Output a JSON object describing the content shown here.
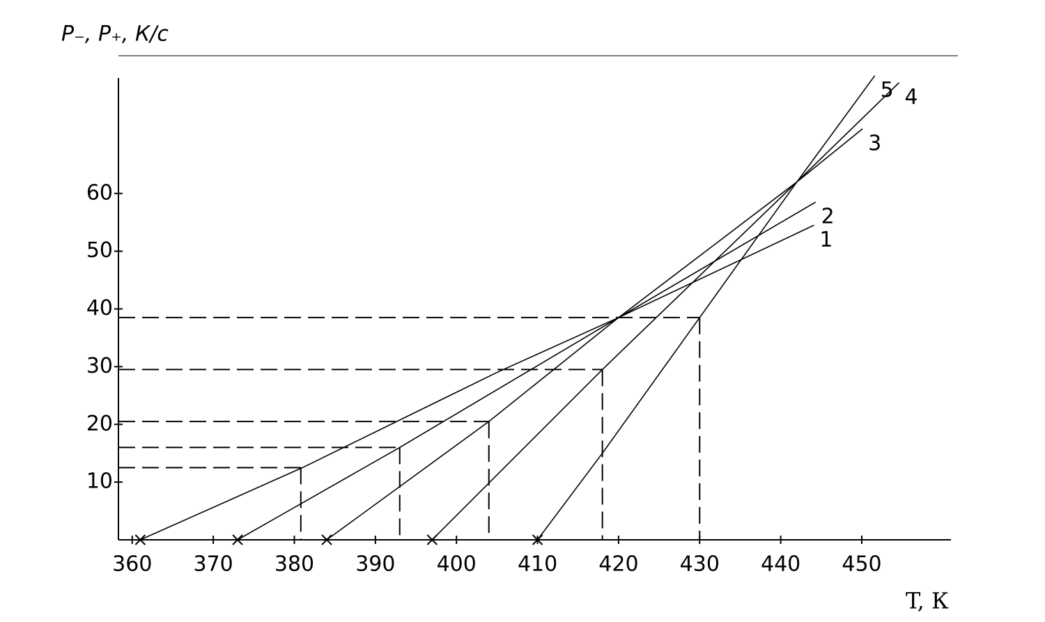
{
  "chart_data": {
    "type": "line",
    "y_label": "P₋, P₊, К/с",
    "x_label": "T, К",
    "xlim": [
      358.3,
      461
    ],
    "ylim": [
      0,
      80
    ],
    "xticks": [
      360,
      370,
      380,
      390,
      400,
      410,
      420,
      430,
      440,
      450
    ],
    "yticks": [
      10,
      20,
      30,
      40,
      50,
      60
    ],
    "series": [
      {
        "name": "1",
        "color": "#000000",
        "x": [
          361,
          381,
          405,
          420,
          444.1
        ],
        "values": [
          0,
          12.5,
          29,
          38.5,
          54.5
        ]
      },
      {
        "name": "2",
        "color": "#000000",
        "x": [
          373,
          393,
          420,
          444.3
        ],
        "values": [
          0,
          16,
          38.5,
          58.5
        ]
      },
      {
        "name": "3",
        "color": "#000000",
        "x": [
          384,
          404,
          420,
          442,
          450.1
        ],
        "values": [
          0,
          20.5,
          38.5,
          62,
          71.2
        ]
      },
      {
        "name": "4",
        "color": "#000000",
        "x": [
          397,
          418,
          442,
          454.6
        ],
        "values": [
          0,
          29.5,
          62,
          79.2
        ]
      },
      {
        "name": "5",
        "color": "#000000",
        "x": [
          410,
          418,
          430,
          442,
          451.6
        ],
        "values": [
          0,
          15,
          38.5,
          62,
          80.4
        ]
      }
    ],
    "markers": [
      {
        "x": 380.8,
        "y": 12.5
      },
      {
        "x": 393,
        "y": 16
      },
      {
        "x": 404,
        "y": 20.5
      },
      {
        "x": 418,
        "y": 29.5
      },
      {
        "x": 430,
        "y": 38.5
      }
    ]
  }
}
